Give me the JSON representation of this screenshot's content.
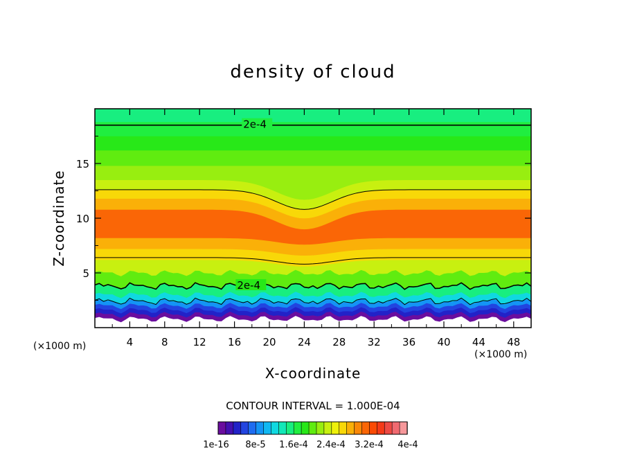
{
  "chart_data": {
    "type": "heatmap",
    "title": "density of cloud",
    "xlabel": "X-coordinate",
    "ylabel": "Z-coordinate",
    "x_unit": "(×1000 m)",
    "z_unit": "(×1000 m)",
    "xlim": [
      0,
      50
    ],
    "ylim": [
      0,
      20
    ],
    "x_ticks": [
      4,
      8,
      12,
      16,
      20,
      24,
      28,
      32,
      36,
      40,
      44,
      48
    ],
    "y_ticks": [
      5,
      10,
      15
    ],
    "contour_interval_text": "CONTOUR INTERVAL = 1.000E-04",
    "contour_labels": [
      {
        "text": "2e-4",
        "x": 17,
        "z": 18.5
      },
      {
        "text": "2e-4",
        "x": 16.3,
        "z": 3.8
      }
    ],
    "colorbar_labels": [
      "1e-16",
      "8e-5",
      "1.6e-4",
      "2.4e-4",
      "3.2e-4",
      "4e-4"
    ],
    "colorbar_colors": [
      "#6a0d9e",
      "#4410b0",
      "#2222c8",
      "#2244e0",
      "#1e6cf0",
      "#1494f5",
      "#10b8f2",
      "#10d8e0",
      "#12e8b8",
      "#18ee80",
      "#20ee40",
      "#28e818",
      "#60ec10",
      "#98ee10",
      "#c8f010",
      "#eef00a",
      "#f8d808",
      "#fab008",
      "#fa8808",
      "#fa6606",
      "#fa4a04",
      "#f43a18",
      "#ee4a44",
      "#f06a70",
      "#f6979a"
    ],
    "bands": [
      {
        "z_from": 0.8,
        "z_to": 1.2,
        "value": 0.0
      },
      {
        "z_from": 1.2,
        "z_to": 1.6,
        "value": 3e-05
      },
      {
        "z_from": 1.6,
        "z_to": 2.0,
        "value": 6e-05
      },
      {
        "z_from": 2.0,
        "z_to": 2.4,
        "value": 9e-05
      },
      {
        "z_from": 2.4,
        "z_to": 3.0,
        "value": 0.00012
      },
      {
        "z_from": 3.0,
        "z_to": 3.8,
        "value": 0.00016
      },
      {
        "z_from": 3.8,
        "z_to": 5.0,
        "value": 0.00022
      },
      {
        "z_from": 5.0,
        "z_to": 6.2,
        "value": 0.00026
      },
      {
        "z_from": 6.2,
        "z_to": 7.2,
        "value": 0.0003
      },
      {
        "z_from": 7.2,
        "z_to": 8.2,
        "value": 0.00032
      },
      {
        "z_from": 8.2,
        "z_to": 10.8,
        "value": 0.00034
      },
      {
        "z_from": 10.8,
        "z_to": 11.8,
        "value": 0.00032
      },
      {
        "z_from": 11.8,
        "z_to": 12.6,
        "value": 0.0003
      },
      {
        "z_from": 12.6,
        "z_to": 13.5,
        "value": 0.00026
      },
      {
        "z_from": 13.5,
        "z_to": 14.8,
        "value": 0.00024
      },
      {
        "z_from": 14.8,
        "z_to": 16.2,
        "value": 0.00022
      },
      {
        "z_from": 16.2,
        "z_to": 17.5,
        "value": 0.0002
      },
      {
        "z_from": 17.5,
        "z_to": 18.8,
        "value": 0.00019
      },
      {
        "z_from": 18.8,
        "z_to": 20.0,
        "value": 0.00017
      }
    ]
  }
}
